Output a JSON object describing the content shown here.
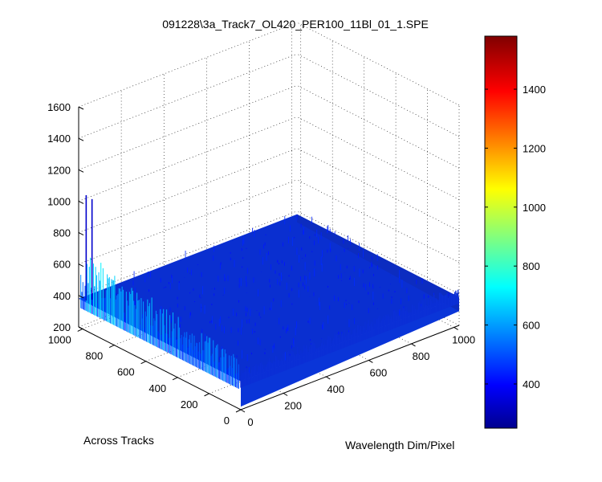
{
  "chart_data": {
    "type": "surface",
    "title": "091228\\3a_Track7_OL420_PER100_11Bl_01_1.SPE",
    "xlabel": "Wavelength Dim/Pixel",
    "ylabel": "Across Tracks",
    "zlabel": "",
    "xlim": [
      0,
      1024
    ],
    "ylim": [
      0,
      1024
    ],
    "zlim": [
      200,
      1600
    ],
    "x_ticks": [
      "0",
      "200",
      "400",
      "600",
      "800",
      "1000"
    ],
    "y_ticks": [
      "0",
      "200",
      "400",
      "600",
      "800",
      "1000"
    ],
    "z_ticks": [
      "200",
      "400",
      "600",
      "800",
      "1000",
      "1200",
      "1400",
      "1600"
    ],
    "colorbar": {
      "colormap": "jet",
      "range": [
        250,
        1580
      ],
      "ticks": [
        "400",
        "600",
        "800",
        "1000",
        "1200",
        "1400"
      ]
    },
    "grid": true,
    "baseline_level": 380,
    "edge_spikes": {
      "location": "x = 0 edge, along Across Tracks",
      "typical_range": [
        400,
        700
      ]
    },
    "peaks": [
      {
        "x": 10,
        "y": 990,
        "z": 1050
      },
      {
        "x": 30,
        "y": 980,
        "z": 1020
      }
    ]
  }
}
